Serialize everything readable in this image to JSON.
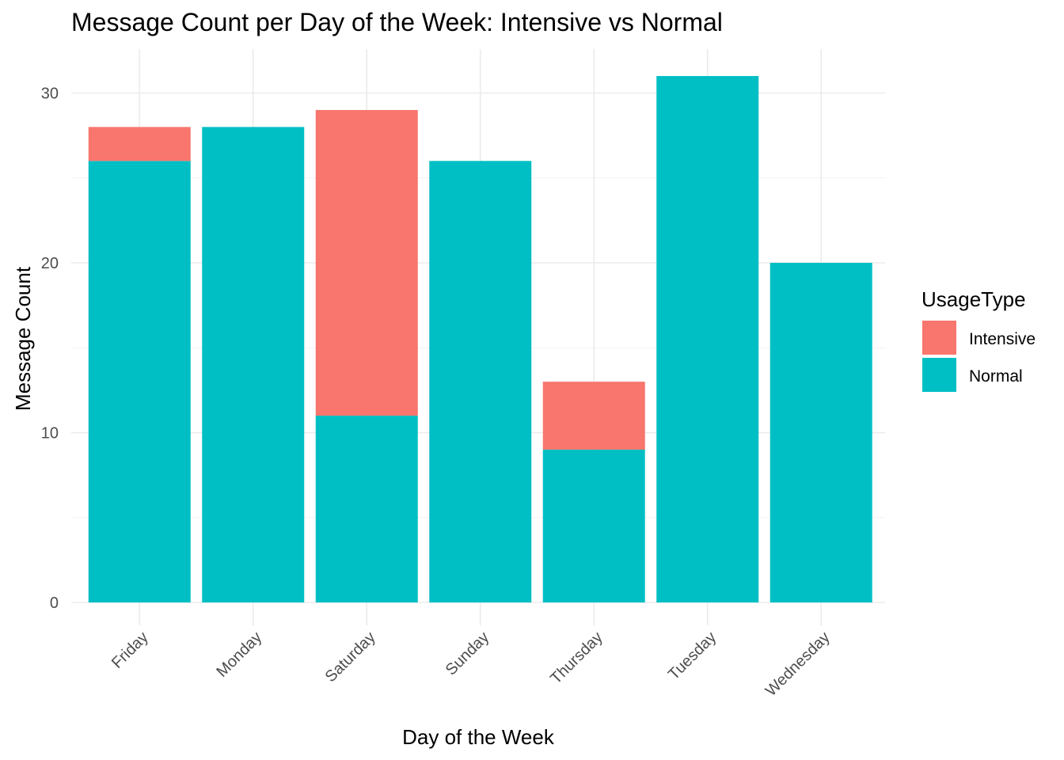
{
  "chart_data": {
    "type": "bar",
    "stacked": true,
    "title": "Message Count per Day of the Week: Intensive vs Normal",
    "xlabel": "Day of the Week",
    "ylabel": "Message Count",
    "categories": [
      "Friday",
      "Monday",
      "Saturday",
      "Sunday",
      "Thursday",
      "Tuesday",
      "Wednesday"
    ],
    "series": [
      {
        "name": "Normal",
        "color": "#00BFC4",
        "values": [
          26,
          28,
          11,
          26,
          9,
          31,
          20
        ]
      },
      {
        "name": "Intensive",
        "color": "#F8766D",
        "values": [
          2,
          0,
          18,
          0,
          4,
          0,
          0
        ]
      }
    ],
    "yticks": [
      0,
      10,
      20,
      30
    ],
    "ylim": [
      0,
      32
    ],
    "grid": true,
    "legend": {
      "title": "UsageType",
      "position": "right",
      "order": [
        "Intensive",
        "Normal"
      ]
    }
  }
}
